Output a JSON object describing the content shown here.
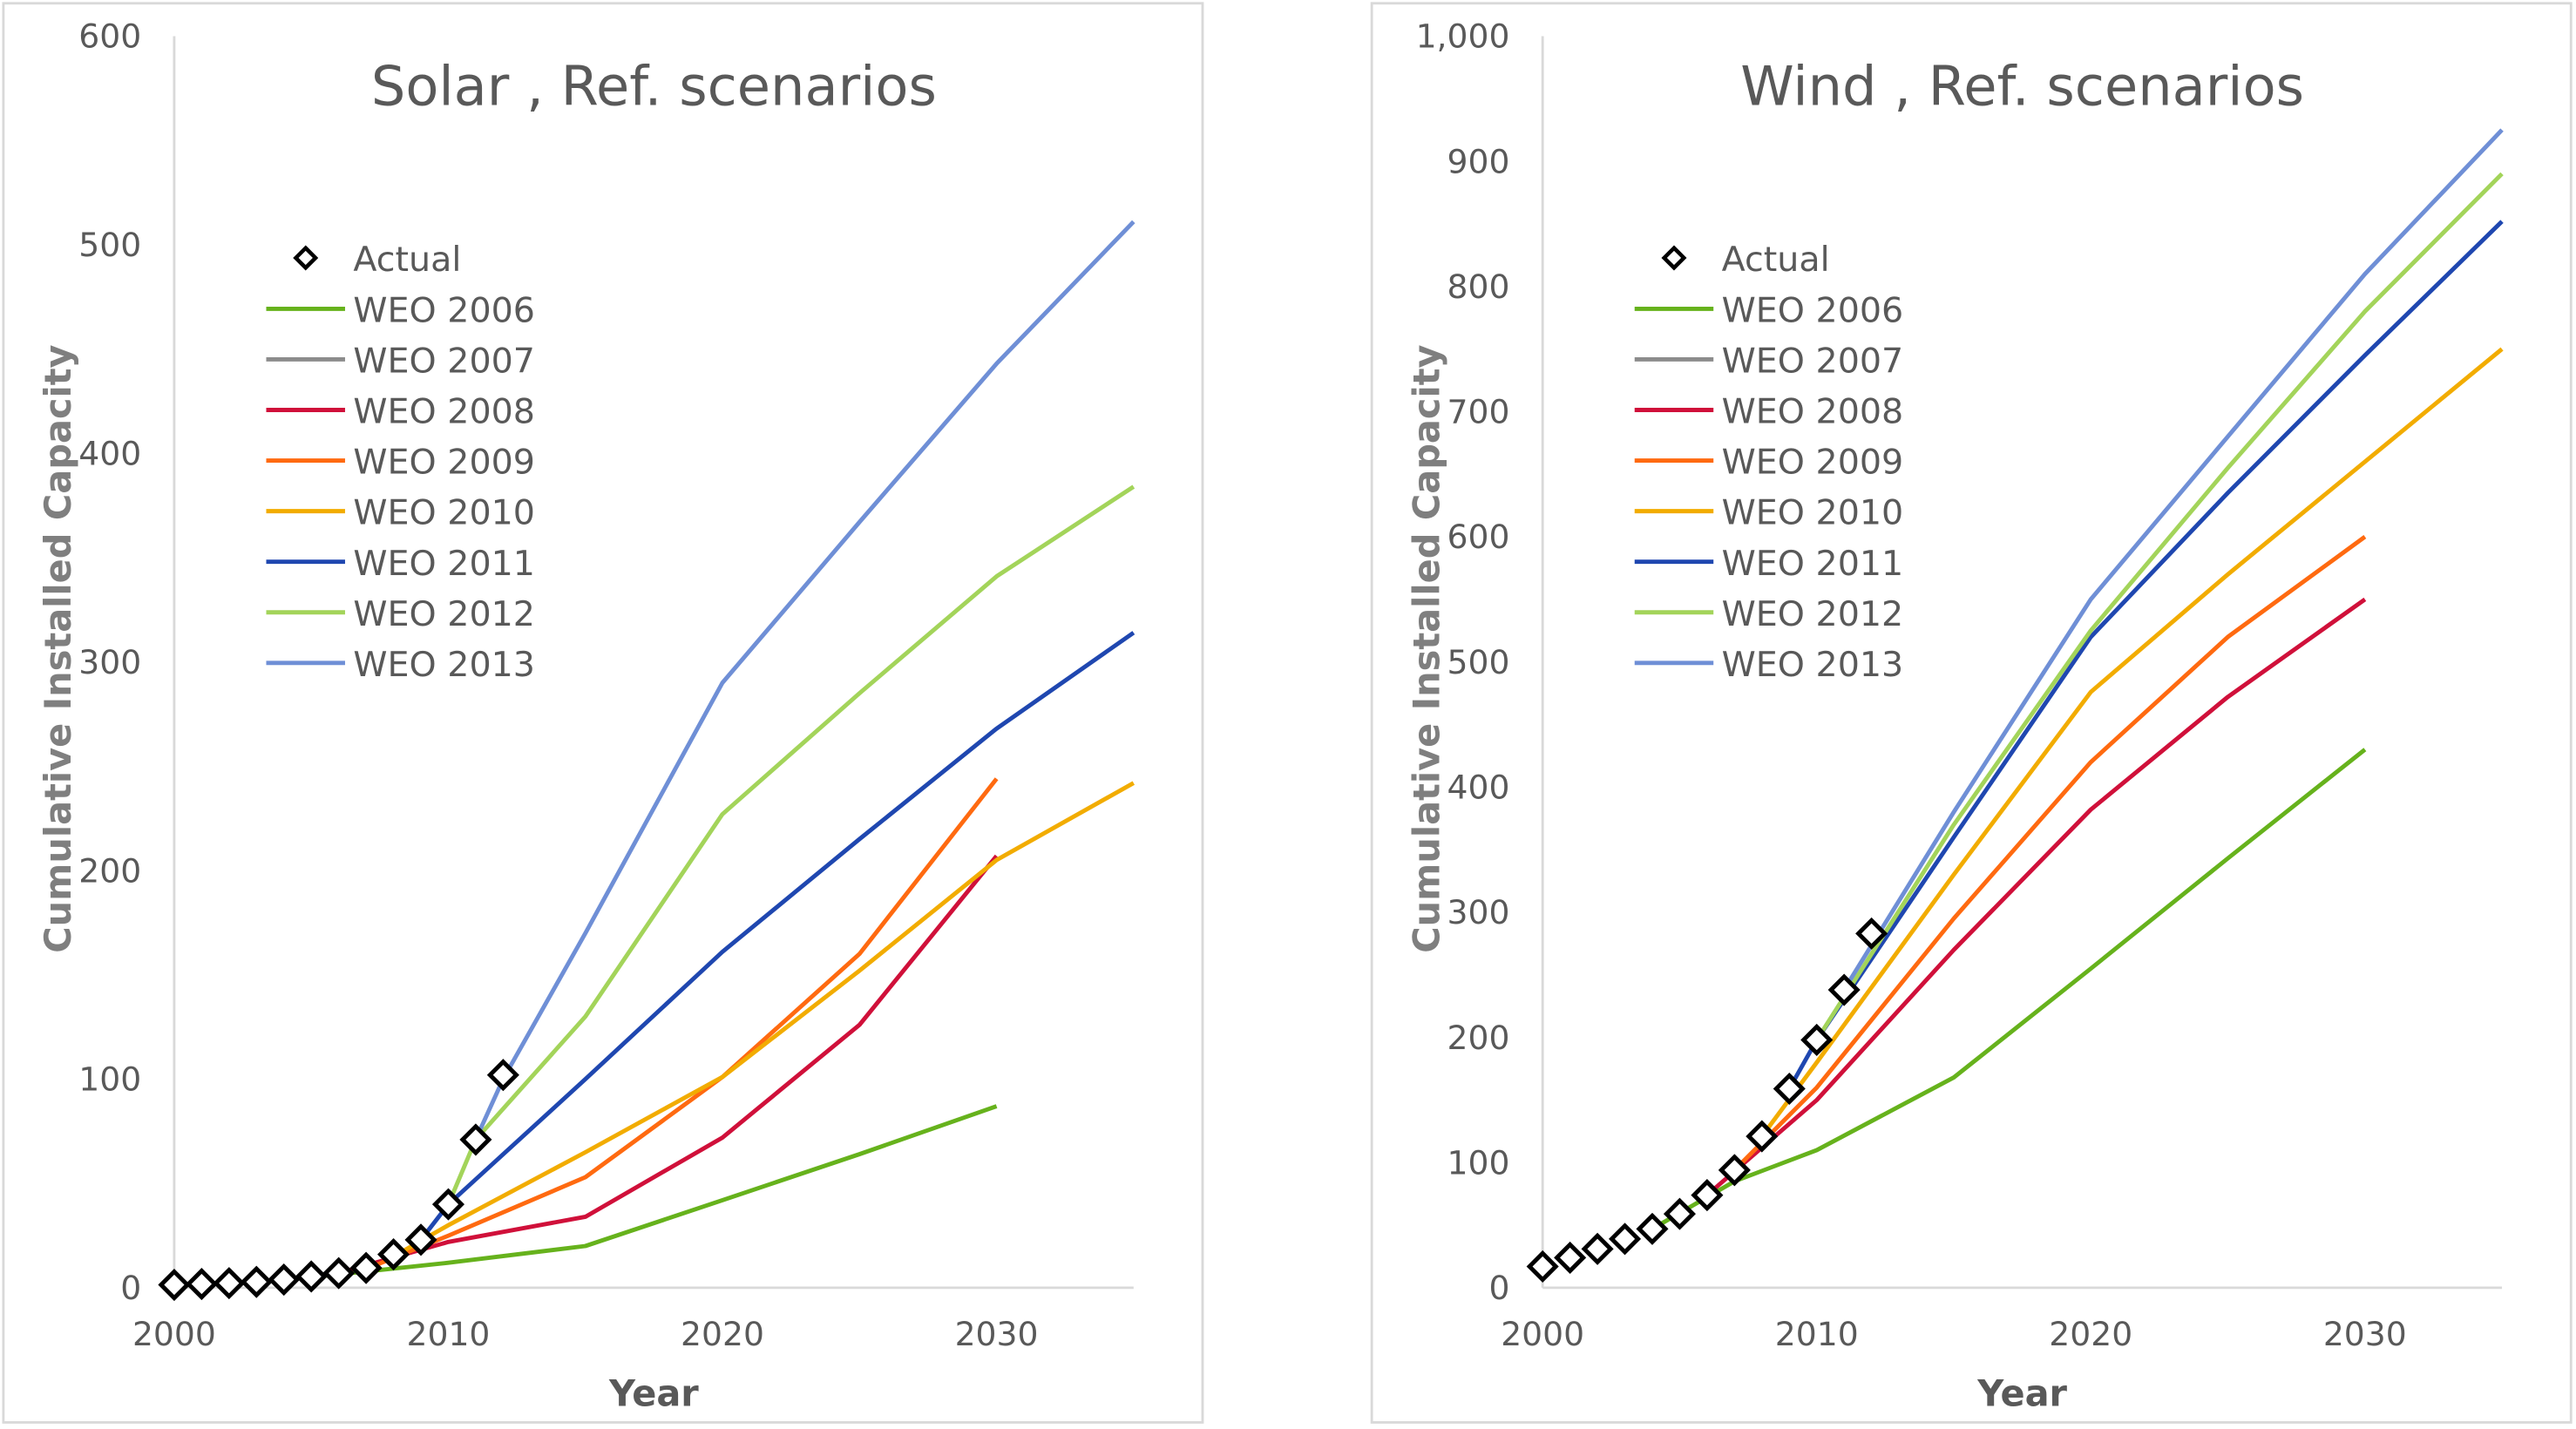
{
  "chart_data": [
    {
      "type": "line",
      "title": "Solar , Ref. scenarios",
      "xlabel": "Year",
      "ylabel": "Cumulative Installed Capacity",
      "xlim": [
        2000,
        2035
      ],
      "ylim": [
        0,
        600
      ],
      "xticks": [
        2000,
        2010,
        2020,
        2030
      ],
      "xtick_labels": [
        "2000",
        "2010",
        "2020",
        "2030"
      ],
      "yticks": [
        0,
        100,
        200,
        300,
        400,
        500,
        600
      ],
      "ytick_labels": [
        "0",
        "100",
        "200",
        "300",
        "400",
        "500",
        "600"
      ],
      "grid": false,
      "legend": "upper-left",
      "actual": {
        "name": "Actual",
        "marker": "diamond-open",
        "color": "#000000",
        "x": [
          2000,
          2001,
          2002,
          2003,
          2004,
          2005,
          2006,
          2007,
          2008,
          2009,
          2010,
          2011,
          2012
        ],
        "y": [
          1.4,
          1.8,
          2.2,
          2.8,
          3.9,
          5.4,
          7,
          9.5,
          16,
          23,
          40,
          71,
          102
        ]
      },
      "series": [
        {
          "name": "WEO 2006",
          "color": "#66b21c",
          "x": [
            2005,
            2010,
            2015,
            2020,
            2025,
            2030
          ],
          "y": [
            5,
            12,
            20,
            42,
            64,
            87
          ]
        },
        {
          "name": "WEO 2007",
          "color": "#8c8c8c",
          "x": [],
          "y": []
        },
        {
          "name": "WEO 2008",
          "color": "#d0103a",
          "x": [
            2006,
            2010,
            2015,
            2020,
            2025,
            2030
          ],
          "y": [
            7,
            22,
            34,
            72,
            126,
            207
          ]
        },
        {
          "name": "WEO 2009",
          "color": "#ff6a10",
          "x": [
            2007,
            2010,
            2015,
            2020,
            2025,
            2030
          ],
          "y": [
            9,
            25,
            53,
            101,
            160,
            244
          ]
        },
        {
          "name": "WEO 2010",
          "color": "#f2ac00",
          "x": [
            2008,
            2010,
            2015,
            2020,
            2025,
            2030,
            2035
          ],
          "y": [
            15,
            30,
            65,
            101,
            152,
            205,
            242
          ]
        },
        {
          "name": "WEO 2011",
          "color": "#1f47b0",
          "x": [
            2009,
            2010,
            2015,
            2020,
            2025,
            2030,
            2035
          ],
          "y": [
            23,
            40,
            100,
            161,
            215,
            268,
            314
          ]
        },
        {
          "name": "WEO 2012",
          "color": "#a3d45a",
          "x": [
            2010,
            2011,
            2015,
            2020,
            2025,
            2030,
            2035
          ],
          "y": [
            40,
            71,
            130,
            227,
            285,
            341,
            384
          ]
        },
        {
          "name": "WEO 2013",
          "color": "#6f8fd6",
          "x": [
            2011,
            2012,
            2015,
            2020,
            2025,
            2030,
            2035
          ],
          "y": [
            71,
            100,
            170,
            290,
            367,
            443,
            511
          ]
        }
      ]
    },
    {
      "type": "line",
      "title": "Wind , Ref. scenarios",
      "xlabel": "Year",
      "ylabel": "Cumulative Installed Capacity",
      "xlim": [
        2000,
        2035
      ],
      "ylim": [
        0,
        1000
      ],
      "xticks": [
        2000,
        2010,
        2020,
        2030
      ],
      "xtick_labels": [
        "2000",
        "2010",
        "2020",
        "2030"
      ],
      "yticks": [
        0,
        100,
        200,
        300,
        400,
        500,
        600,
        700,
        800,
        900,
        1000
      ],
      "ytick_labels": [
        "0",
        "100",
        "200",
        "300",
        "400",
        "500",
        "600",
        "700",
        "800",
        "900",
        "1,000"
      ],
      "grid": false,
      "legend": "upper-left",
      "actual": {
        "name": "Actual",
        "marker": "diamond-open",
        "color": "#000000",
        "x": [
          2000,
          2001,
          2002,
          2003,
          2004,
          2005,
          2006,
          2007,
          2008,
          2009,
          2010,
          2011,
          2012
        ],
        "y": [
          17,
          24,
          31,
          39,
          47,
          59,
          74,
          94,
          121,
          159,
          198,
          238,
          283
        ]
      },
      "series": [
        {
          "name": "WEO 2006",
          "color": "#66b21c",
          "x": [
            2004,
            2007,
            2010,
            2015,
            2020,
            2025,
            2030
          ],
          "y": [
            47,
            85,
            110,
            168,
            255,
            343,
            430
          ]
        },
        {
          "name": "WEO 2007",
          "color": "#8c8c8c",
          "x": [],
          "y": []
        },
        {
          "name": "WEO 2008",
          "color": "#d0103a",
          "x": [
            2006,
            2010,
            2015,
            2020,
            2025,
            2030
          ],
          "y": [
            74,
            150,
            270,
            382,
            472,
            550
          ]
        },
        {
          "name": "WEO 2009",
          "color": "#ff6a10",
          "x": [
            2007,
            2010,
            2015,
            2020,
            2025,
            2030
          ],
          "y": [
            94,
            160,
            295,
            420,
            520,
            600
          ]
        },
        {
          "name": "WEO 2010",
          "color": "#f2ac00",
          "x": [
            2008,
            2010,
            2015,
            2020,
            2025,
            2030,
            2035
          ],
          "y": [
            121,
            180,
            330,
            476,
            570,
            660,
            750
          ]
        },
        {
          "name": "WEO 2011",
          "color": "#1f47b0",
          "x": [
            2009,
            2010,
            2015,
            2020,
            2025,
            2030,
            2035
          ],
          "y": [
            159,
            198,
            360,
            520,
            635,
            745,
            852
          ]
        },
        {
          "name": "WEO 2012",
          "color": "#a3d45a",
          "x": [
            2010,
            2015,
            2020,
            2025,
            2030,
            2035
          ],
          "y": [
            198,
            370,
            525,
            655,
            780,
            890
          ]
        },
        {
          "name": "WEO 2013",
          "color": "#6f8fd6",
          "x": [
            2011,
            2015,
            2020,
            2025,
            2030,
            2035
          ],
          "y": [
            238,
            380,
            550,
            680,
            810,
            925
          ]
        }
      ]
    }
  ]
}
